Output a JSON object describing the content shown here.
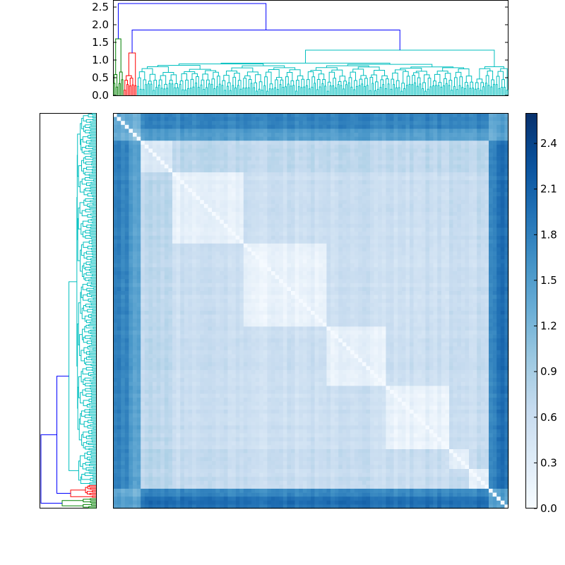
{
  "chart_data": {
    "type": "heatmap",
    "title": "",
    "matrix_size": 300,
    "colormap": {
      "name": "Blues",
      "stops": [
        "#f7fbff",
        "#deebf7",
        "#c6dbef",
        "#9ecae1",
        "#6baed6",
        "#4292c6",
        "#2171b5",
        "#08519c",
        "#08306b"
      ]
    },
    "value_range": [
      0.0,
      2.6
    ],
    "colorbar": {
      "ticks": [
        0.0,
        0.3,
        0.6,
        0.9,
        1.2,
        1.5,
        1.8,
        2.1,
        2.4
      ],
      "tick_labels": [
        "0.0",
        "0.3",
        "0.6",
        "0.9",
        "1.2",
        "1.5",
        "1.8",
        "2.1",
        "2.4"
      ]
    },
    "top_dendrogram": {
      "ylim": [
        0.0,
        2.6
      ],
      "ticks": [
        0.0,
        0.5,
        1.0,
        1.5,
        2.0,
        2.5
      ],
      "tick_labels": [
        "0.0",
        "0.5",
        "1.0",
        "1.5",
        "2.0",
        "2.5"
      ],
      "root_height": 2.6,
      "second_merge_height": 1.85,
      "clusters": [
        {
          "color": "#008000",
          "leaves": 8,
          "height": 1.6
        },
        {
          "color": "#ff0000",
          "leaves": 10,
          "height": 1.2
        },
        {
          "color": "#00bfbf",
          "leaves": 282,
          "height": 1.28
        }
      ]
    },
    "left_dendrogram": {
      "root_height": 2.6,
      "second_merge_height": 1.85,
      "clusters": [
        {
          "color": "#00bfbf",
          "leaves": 282,
          "height": 1.28
        },
        {
          "color": "#ff0000",
          "leaves": 10,
          "height": 1.2
        },
        {
          "color": "#008000",
          "leaves": 8,
          "height": 1.6
        }
      ]
    },
    "heatmap_blocks": [
      {
        "start": 0,
        "end": 8,
        "level": 1.2
      },
      {
        "start": 8,
        "end": 18,
        "level": 1.25
      },
      {
        "start": 18,
        "end": 43,
        "level": 0.55
      },
      {
        "start": 43,
        "end": 98,
        "level": 0.35
      },
      {
        "start": 98,
        "end": 160,
        "level": 0.3
      },
      {
        "start": 160,
        "end": 205,
        "level": 0.32
      },
      {
        "start": 205,
        "end": 255,
        "level": 0.3
      },
      {
        "start": 255,
        "end": 270,
        "level": 0.45
      },
      {
        "start": 270,
        "end": 300,
        "level": 0.4
      }
    ],
    "heatmap_bands": [
      {
        "index_range": [
          0,
          10
        ],
        "level": 1.75
      },
      {
        "index_range": [
          10,
          20
        ],
        "level": 1.5
      },
      {
        "index_range": [
          283,
          290
        ],
        "level": 1.7
      },
      {
        "index_range": [
          290,
          300
        ],
        "level": 1.95
      }
    ]
  }
}
